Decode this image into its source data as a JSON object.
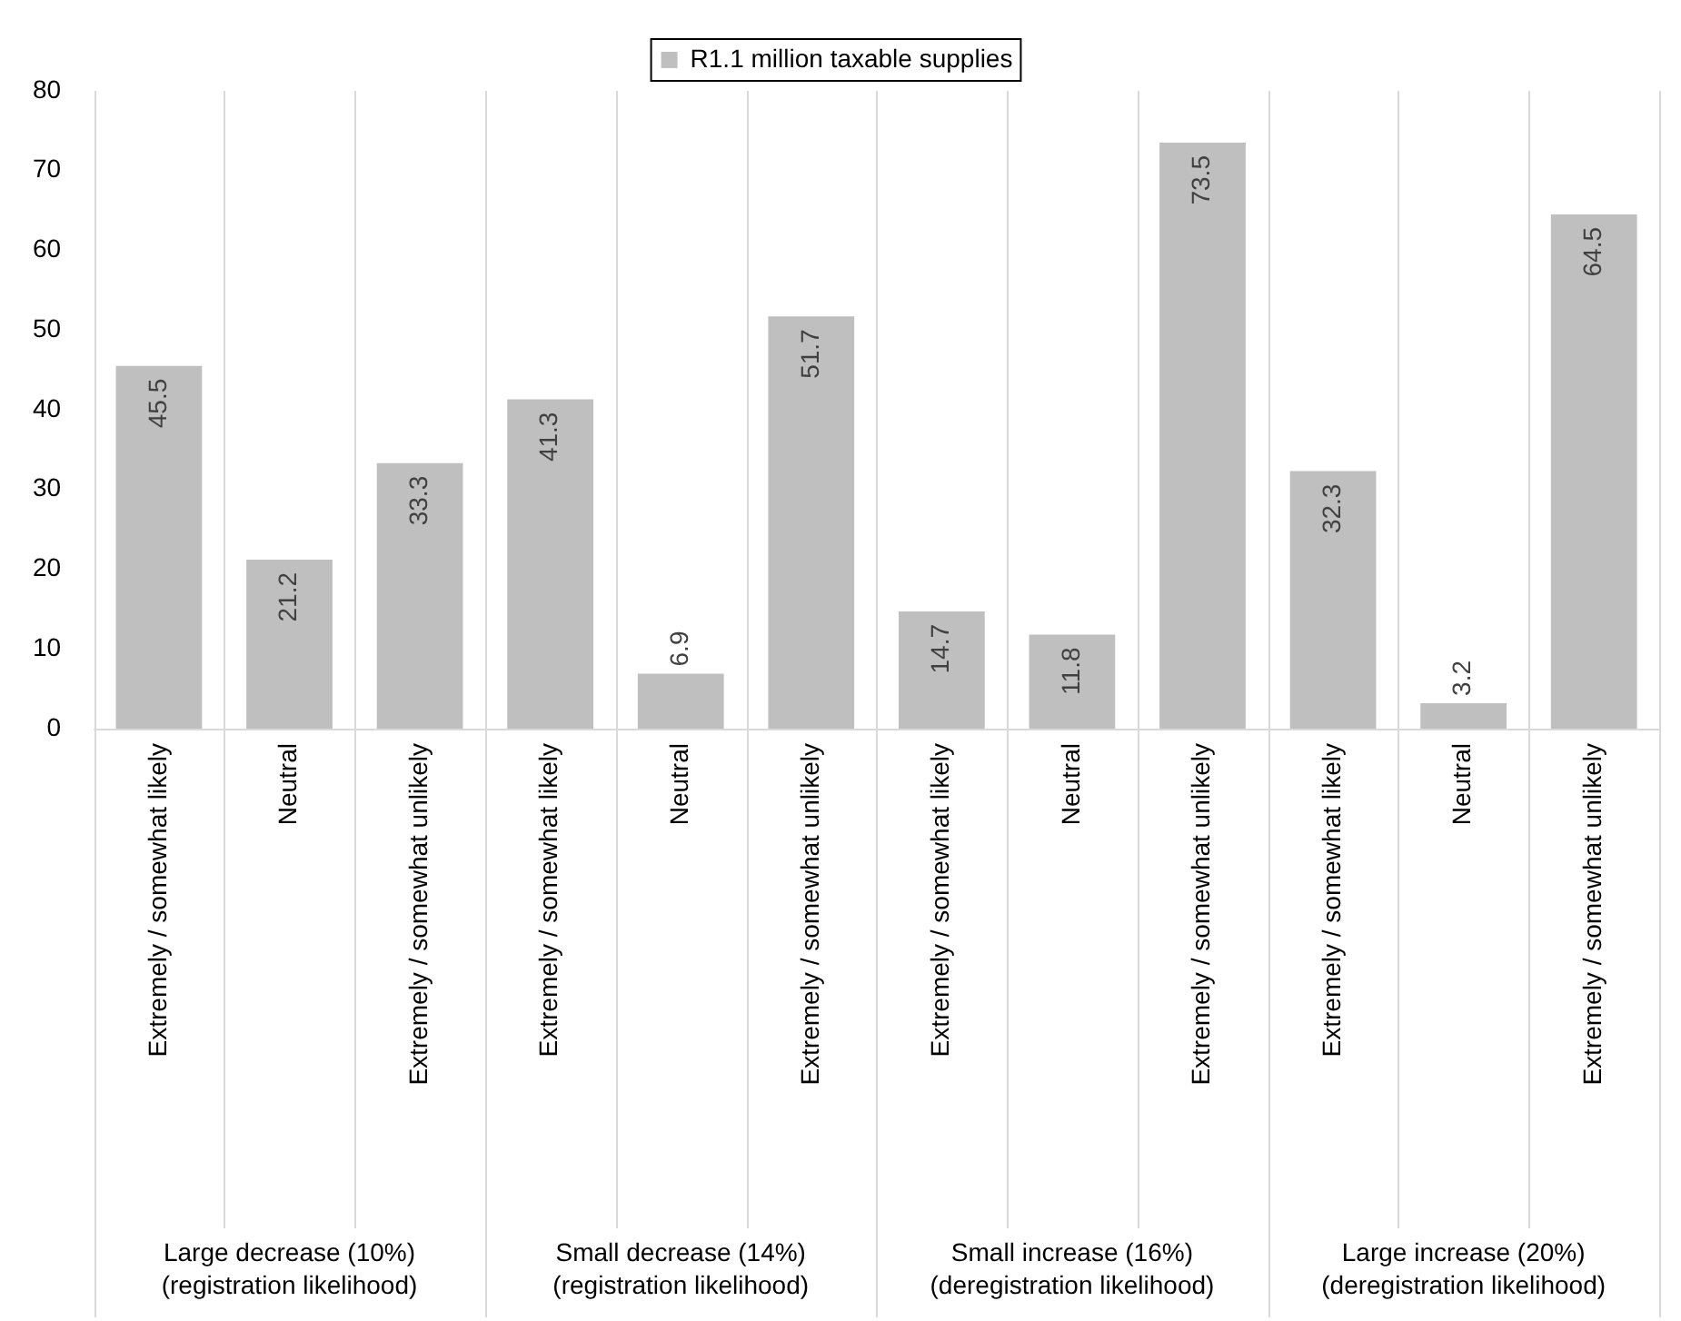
{
  "chart_data": {
    "type": "bar",
    "categories": [
      "Extremely / somewhat likely",
      "Neutral",
      "Extremely / somewhat unlikely",
      "Extremely / somewhat likely",
      "Neutral",
      "Extremely / somewhat unlikely",
      "Extremely / somewhat likely",
      "Neutral",
      "Extremely / somewhat unlikely",
      "Extremely / somewhat likely",
      "Neutral",
      "Extremely / somewhat unlikely"
    ],
    "series": [
      {
        "name": "R1.1 million taxable supplies",
        "color": "#bfbfbf",
        "values": [
          45.5,
          21.2,
          33.3,
          41.3,
          6.9,
          51.7,
          14.7,
          11.8,
          73.5,
          32.3,
          3.2,
          64.5
        ]
      }
    ],
    "annotations": [
      "Large decrease (10%) (registration likelihood)",
      "Small decrease (14%) (registration likelihood)",
      "Small increase (16%) (deregistration likelihood)",
      "Large increase (20%) (deregistration likelihood)"
    ],
    "ylim": [
      0,
      80
    ],
    "yticks": [
      0,
      10,
      20,
      30,
      40,
      50,
      60,
      70,
      80
    ],
    "grid": "x",
    "legend": "top",
    "data_labels": true
  }
}
